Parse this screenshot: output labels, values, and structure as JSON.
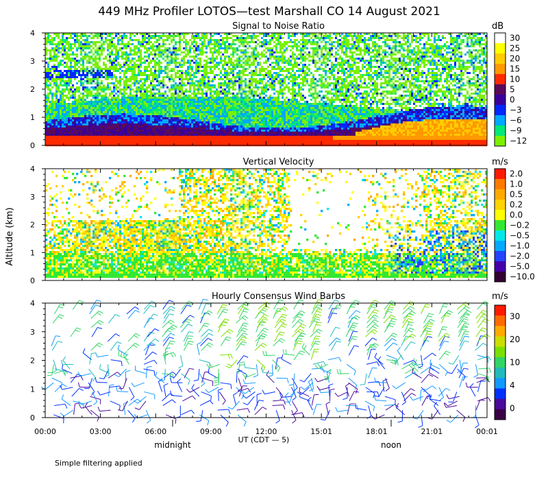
{
  "figure": {
    "title": "449 MHz Profiler LOTOS—test Marshall CO 14 August 2021",
    "ylabel": "Altitude (km)",
    "footnote": "Simple filtering applied"
  },
  "time_axis": {
    "ticks": [
      "00:00",
      "03:00",
      "06:00",
      "09:00",
      "12:00",
      "15:01",
      "18:01",
      "21:01",
      "00:01"
    ],
    "label": "UT  (CDT — 5)",
    "markers": [
      "midnight",
      "noon"
    ]
  },
  "chart_data": [
    {
      "type": "heatmap",
      "title": "Signal to Noise Ratio",
      "xlabel": "UT (CDT - 5)",
      "ylabel": "Altitude (km)",
      "y_ticks": [
        "0",
        "1",
        "2",
        "3",
        "4"
      ],
      "ylim": [
        0,
        4
      ],
      "colorbar": {
        "unit": "dB",
        "labels": [
          "30",
          "25",
          "20",
          "15",
          "10",
          "5",
          "0",
          "−3",
          "−6",
          "−9",
          "−12"
        ],
        "colors": [
          "#ffffff",
          "#ffff00",
          "#ffcc00",
          "#ff9900",
          "#ff2a00",
          "#5a0a5a",
          "#3a009a",
          "#0028ff",
          "#00a8ff",
          "#00e878",
          "#7cf000"
        ]
      }
    },
    {
      "type": "heatmap",
      "title": "Vertical Velocity",
      "xlabel": "UT (CDT - 5)",
      "ylabel": "Altitude (km)",
      "y_ticks": [
        "0",
        "1",
        "2",
        "3",
        "4"
      ],
      "ylim": [
        0,
        4
      ],
      "colorbar": {
        "unit": "m/s",
        "labels": [
          "2.0",
          "1.0",
          "0.5",
          "0.2",
          "0.0",
          "−0.2",
          "−0.5",
          "−1.0",
          "−2.0",
          "−5.0",
          "−10.0"
        ],
        "colors": [
          "#ff1a00",
          "#ff7a00",
          "#ffaa00",
          "#ffd200",
          "#ffff00",
          "#33e833",
          "#00e8e8",
          "#00aaff",
          "#2244ff",
          "#4400aa",
          "#330033"
        ]
      }
    },
    {
      "type": "wind-barbs",
      "title": "Hourly Consensus Wind Barbs",
      "xlabel": "UT (CDT - 5)",
      "ylabel": "Altitude (km)",
      "y_ticks": [
        "0",
        "1",
        "2",
        "3",
        "4"
      ],
      "ylim": [
        0,
        4
      ],
      "colorbar": {
        "unit": "m/s",
        "labels": [
          "30",
          "20",
          "10",
          "4",
          "0"
        ],
        "colors": [
          "#ff1a00",
          "#ff6a00",
          "#ffaa00",
          "#ccdd00",
          "#7be000",
          "#33d466",
          "#22bbbb",
          "#1199ff",
          "#0030ff",
          "#4a0a9a",
          "#3a0044"
        ]
      }
    }
  ]
}
